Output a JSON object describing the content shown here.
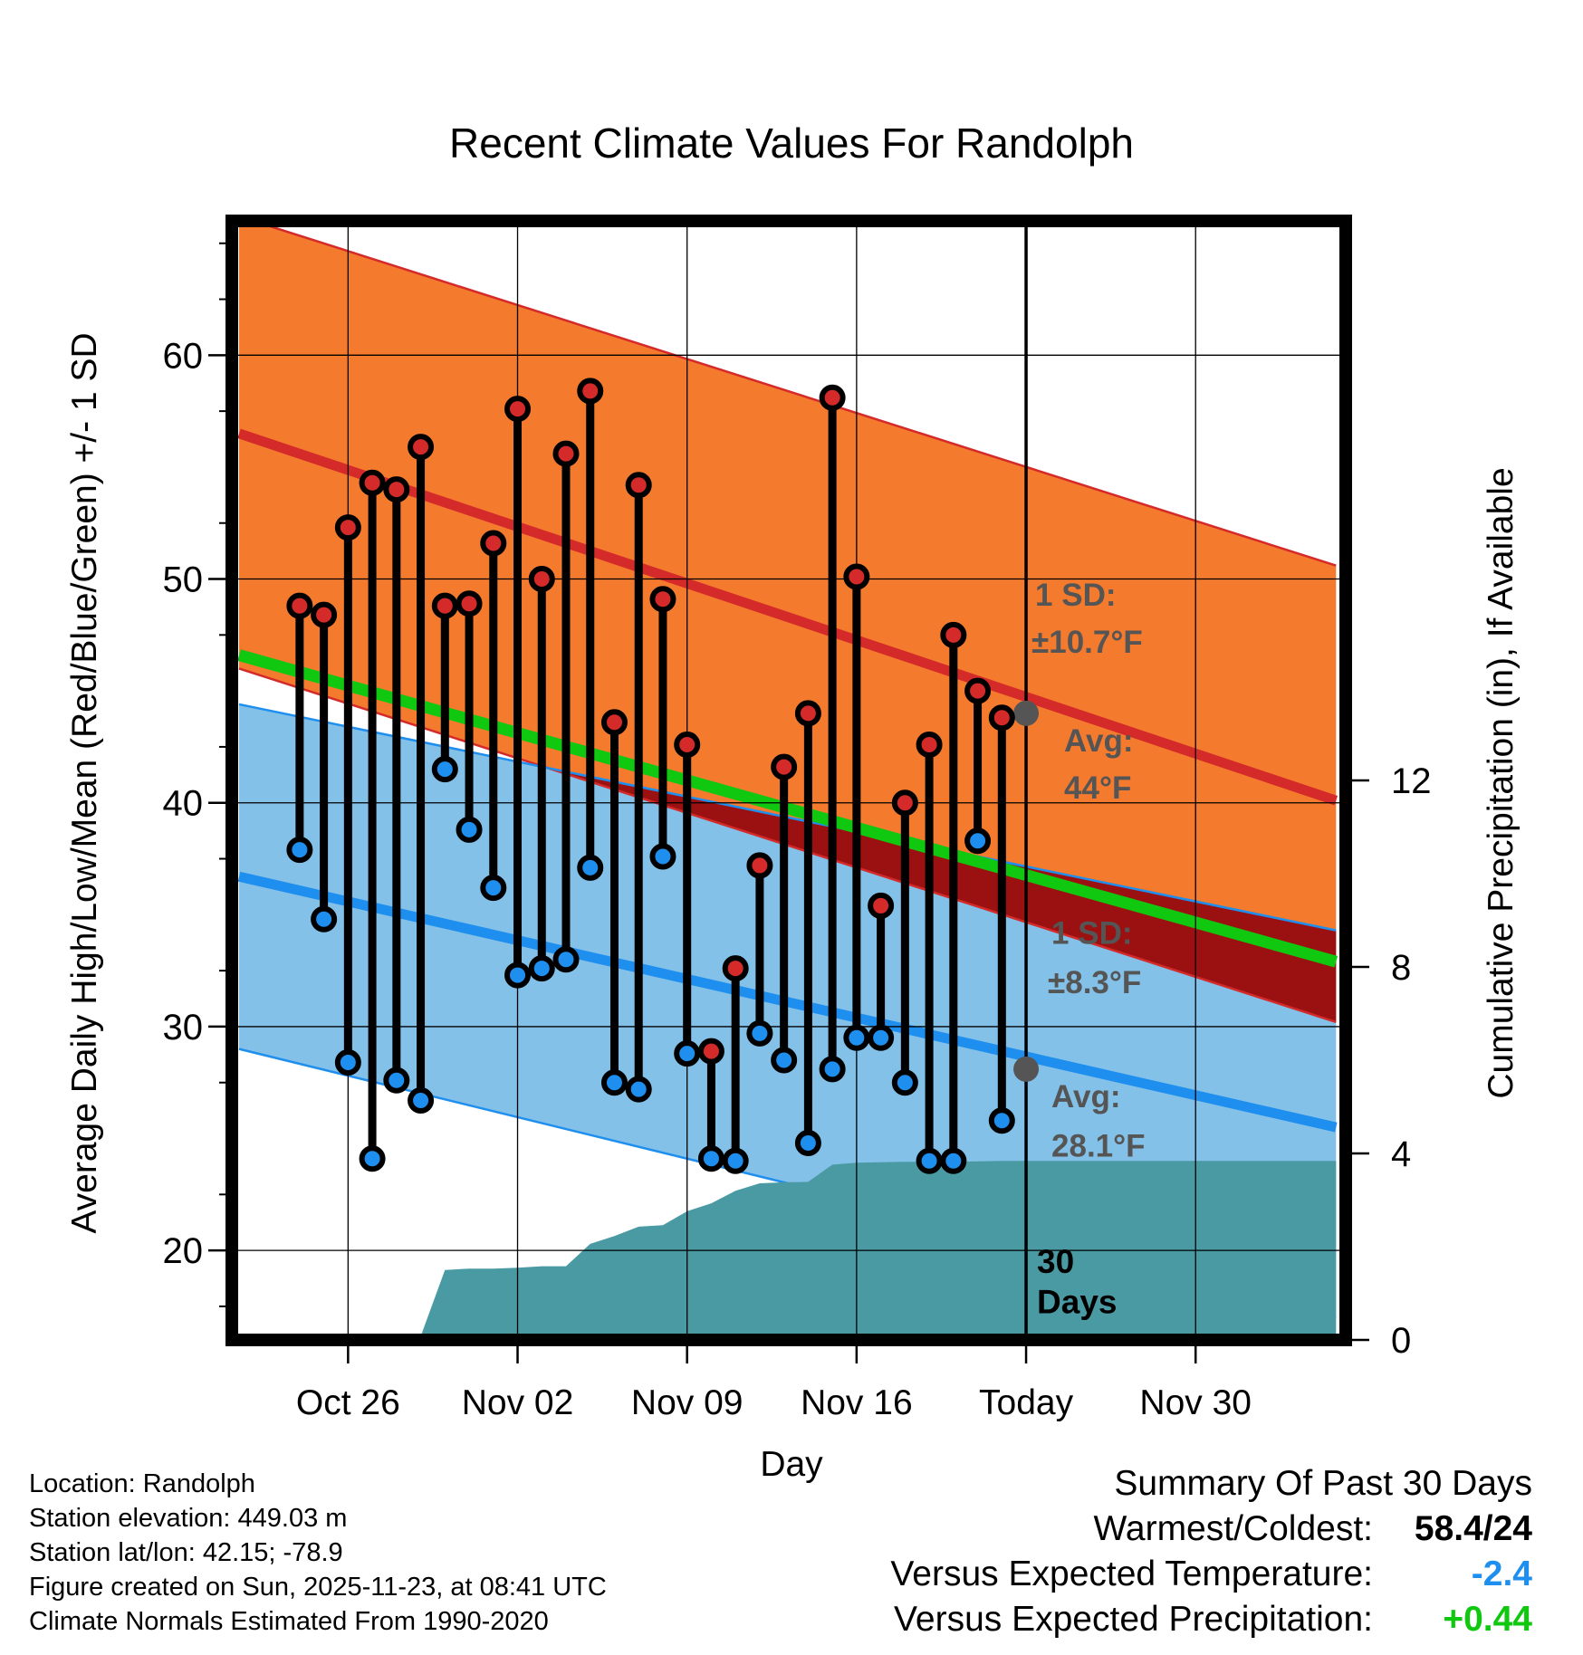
{
  "chart_data": {
    "type": "climate-range",
    "title": "Recent Climate Values For Randolph",
    "xlabel": "Day",
    "ylabel": "Average Daily High/Low/Mean (Red/Blue/Green) +/- 1 SD",
    "ylabel_right": "Cumulative Precipitation (in), If Available",
    "x_range": [
      -4.8,
      41.2
    ],
    "ylim": [
      16,
      66
    ],
    "y2lim": [
      0,
      24
    ],
    "y_ticks": [
      20,
      30,
      40,
      50,
      60
    ],
    "y_ticks_labels": [
      "20",
      "30",
      "40",
      "50",
      "60"
    ],
    "y2_ticks": [
      0,
      4,
      8,
      12
    ],
    "y2_ticks_labels": [
      "0",
      "4",
      "8",
      "12"
    ],
    "x_ticks": [
      {
        "day": 0,
        "label": "Oct 26"
      },
      {
        "day": 7,
        "label": "Nov 02"
      },
      {
        "day": 14,
        "label": "Nov 09"
      },
      {
        "day": 21,
        "label": "Nov 16"
      },
      {
        "day": 28,
        "label": "Today"
      },
      {
        "day": 35,
        "label": "Nov 30"
      }
    ],
    "today_day": 28,
    "normals": {
      "days": [
        -4.5,
        40.8
      ],
      "avg_high": [
        56.5,
        40.1
      ],
      "high_upper": [
        66.2,
        50.6
      ],
      "high_lower": [
        46.0,
        30.2
      ],
      "avg_low": [
        36.7,
        25.5
      ],
      "low_upper": [
        44.4,
        34.3
      ],
      "low_lower": [
        29.0,
        17.0
      ],
      "avg_mean": [
        46.6,
        32.9
      ]
    },
    "observations": {
      "days": [
        -2,
        -1,
        0,
        1,
        2,
        3,
        4,
        5,
        6,
        7,
        8,
        9,
        10,
        11,
        12,
        13,
        14,
        15,
        16,
        17,
        18,
        19,
        20,
        21,
        22,
        23,
        24,
        25,
        26,
        27
      ],
      "highs": [
        48.8,
        48.4,
        52.3,
        54.3,
        54.0,
        55.9,
        48.8,
        48.9,
        51.6,
        57.6,
        50.0,
        55.6,
        58.4,
        43.6,
        54.2,
        49.1,
        42.6,
        28.9,
        32.6,
        37.2,
        41.6,
        44.0,
        58.1,
        50.1,
        35.4,
        40.0,
        42.6,
        47.5,
        45.0,
        43.8
      ],
      "lows": [
        37.9,
        34.8,
        28.4,
        24.1,
        27.6,
        26.7,
        41.5,
        38.8,
        36.2,
        32.3,
        32.6,
        33.0,
        37.1,
        27.5,
        27.2,
        37.6,
        28.8,
        24.1,
        24.0,
        29.7,
        28.5,
        24.8,
        28.1,
        29.5,
        29.5,
        27.5,
        24.0,
        24.0,
        38.3,
        25.8
      ]
    },
    "precip_cumulative": {
      "days": [
        -2,
        -1,
        0,
        1,
        2,
        3,
        4,
        5,
        6,
        7,
        8,
        9,
        10,
        11,
        12,
        13,
        14,
        15,
        16,
        17,
        18,
        19,
        20,
        21,
        22,
        23,
        24,
        25,
        26,
        27,
        28,
        40.8
      ],
      "values": [
        0.05,
        0.07,
        0.08,
        0.08,
        0.08,
        0.08,
        1.5,
        1.53,
        1.53,
        1.55,
        1.58,
        1.58,
        2.06,
        2.23,
        2.43,
        2.46,
        2.76,
        2.93,
        3.2,
        3.36,
        3.38,
        3.39,
        3.76,
        3.8,
        3.81,
        3.82,
        3.82,
        3.82,
        3.83,
        3.84,
        3.84,
        3.84
      ]
    },
    "annotations": {
      "high_sd_label": "1 SD:",
      "high_sd_value": "±10.7°F",
      "high_avg_label": "Avg:",
      "high_avg_value": "44°F",
      "low_sd_label": "1 SD:",
      "low_sd_value": "±8.3°F",
      "low_avg_label": "Avg:",
      "low_avg_value": "28.1°F",
      "period_num": "30",
      "period_unit": "Days",
      "high_avg_today": 44,
      "low_avg_today": 28.1
    },
    "colors": {
      "high_band": "#f47a2e",
      "high_line": "#d42a2a",
      "low_band": "#84c1e8",
      "low_line": "#1e8fef",
      "mean_line": "#11c811",
      "overlap": "#9b1111",
      "precip": "#4a9aa4",
      "high_dot": "#d42a2a",
      "low_dot": "#1e8fef",
      "annotation": "#555555"
    }
  },
  "info": {
    "location": "Location: Randolph",
    "elevation": "Station elevation: 449.03 m",
    "latlon": "Station lat/lon: 42.15; -78.9",
    "created": "Figure created on Sun, 2025-11-23, at 08:41 UTC",
    "normals": "Climate Normals Estimated From 1990-2020"
  },
  "summary": {
    "heading": "Summary Of Past 30 Days",
    "warmest_label": "Warmest/Coldest:",
    "warmest_value": "58.4/24",
    "temp_label": "Versus Expected Temperature:",
    "temp_value": "-2.4",
    "temp_color": "#1e8fef",
    "precip_label": "Versus Expected Precipitation:",
    "precip_value": "+0.44",
    "precip_color": "#11c811"
  }
}
